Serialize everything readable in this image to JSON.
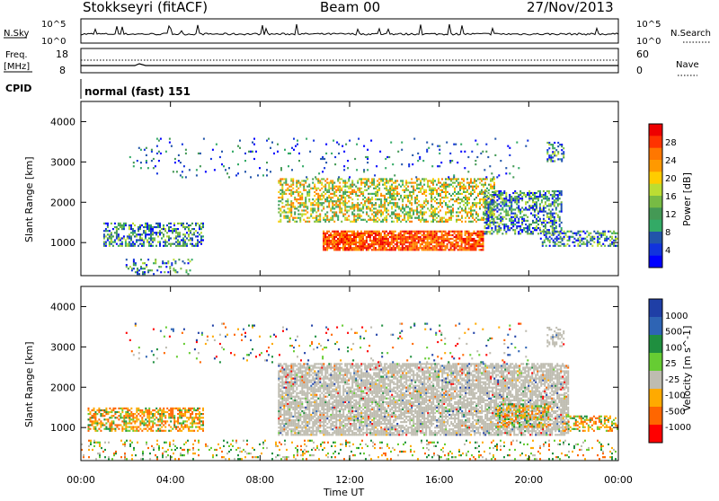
{
  "header": {
    "station": "Stokkseyri (fitACF)",
    "beam": "Beam 00",
    "date": "27/Nov/2013"
  },
  "status_panels": {
    "nsky_label": "N.Sky",
    "nsky_ticks": [
      "10^5",
      "10^0"
    ],
    "nsearch_label": "N.Search",
    "nsearch_ticks": [
      "10^5",
      "10^0"
    ],
    "freq_label": "Freq.",
    "freq_unit": "[MHz]",
    "freq_ticks": [
      "18",
      "8"
    ],
    "nave_label": "Nave",
    "nave_ticks": [
      "60",
      "0"
    ],
    "cpid_label": "CPID",
    "cpid_value": "normal (fast) 151"
  },
  "chart_data": [
    {
      "type": "heatmap",
      "ylabel": "Slant Range [km]",
      "yticks": [
        "4000",
        "3000",
        "2000",
        "1000"
      ],
      "ylim": [
        180,
        4500
      ],
      "xlim": [
        0,
        24
      ],
      "colorbar_label": "Power [dB]",
      "colorbar_ticks": [
        "28",
        "24",
        "20",
        "16",
        "12",
        "8",
        "4"
      ],
      "colorbar_colors": [
        "#ee0000",
        "#ff3300",
        "#ff7700",
        "#ff9900",
        "#ffcc00",
        "#bbdd33",
        "#77bb44",
        "#449955",
        "#33aa66",
        "#2255aa",
        "#1133dd",
        "#0000ff"
      ],
      "regions": [
        {
          "t0": 1.0,
          "t1": 5.5,
          "r0": 900,
          "r1": 1500,
          "level": "low",
          "density": 0.55
        },
        {
          "t0": 8.8,
          "t1": 18.5,
          "r0": 1500,
          "r1": 2600,
          "level": "mid",
          "density": 0.5
        },
        {
          "t0": 10.8,
          "t1": 18.0,
          "r0": 800,
          "r1": 1300,
          "level": "high",
          "density": 0.85
        },
        {
          "t0": 18.0,
          "t1": 21.5,
          "r0": 1200,
          "r1": 2300,
          "level": "low",
          "density": 0.55
        },
        {
          "t0": 20.5,
          "t1": 24.0,
          "r0": 900,
          "r1": 1300,
          "level": "low",
          "density": 0.5
        },
        {
          "t0": 20.8,
          "t1": 21.6,
          "r0": 3000,
          "r1": 3500,
          "level": "low",
          "density": 0.5
        },
        {
          "t0": 2.0,
          "t1": 5.0,
          "r0": 200,
          "r1": 600,
          "level": "low",
          "density": 0.25
        },
        {
          "t0": 2.0,
          "t1": 20.0,
          "r0": 2600,
          "r1": 3600,
          "level": "scatter",
          "density": 0.05
        }
      ]
    },
    {
      "type": "heatmap",
      "ylabel": "Slant Range [km]",
      "yticks": [
        "4000",
        "3000",
        "2000",
        "1000"
      ],
      "ylim": [
        180,
        4500
      ],
      "xlim": [
        0,
        24
      ],
      "xticks": [
        "00:00",
        "04:00",
        "08:00",
        "12:00",
        "16:00",
        "20:00",
        "00:00"
      ],
      "xlabel": "Time UT",
      "colorbar_label": "Velocity [m s^-1]",
      "colorbar_ticks": [
        "1000",
        "500",
        "100",
        "25",
        "-25",
        "-100",
        "-500",
        "-1000"
      ],
      "colorbar_colors": [
        "#1f3fa6",
        "#2e64b4",
        "#1f8f3f",
        "#66cc33",
        "#bebcb0",
        "#ffaa00",
        "#ff6600",
        "#ff0000"
      ],
      "regions": [
        {
          "t0": 0.3,
          "t1": 5.5,
          "r0": 900,
          "r1": 1500,
          "level": "neg",
          "density": 0.55
        },
        {
          "t0": 8.8,
          "t1": 21.8,
          "r0": 800,
          "r1": 2600,
          "level": "grey",
          "density": 0.75
        },
        {
          "t0": 18.5,
          "t1": 21.0,
          "r0": 1000,
          "r1": 1600,
          "level": "neg",
          "density": 0.45
        },
        {
          "t0": 21.5,
          "t1": 24.0,
          "r0": 900,
          "r1": 1300,
          "level": "neg",
          "density": 0.45
        },
        {
          "t0": 20.8,
          "t1": 21.6,
          "r0": 3000,
          "r1": 3500,
          "level": "grey",
          "density": 0.5
        },
        {
          "t0": 0.0,
          "t1": 24.0,
          "r0": 200,
          "r1": 700,
          "level": "mix",
          "density": 0.15
        },
        {
          "t0": 2.0,
          "t1": 20.0,
          "r0": 2600,
          "r1": 3600,
          "level": "scatter",
          "density": 0.05
        }
      ]
    }
  ]
}
